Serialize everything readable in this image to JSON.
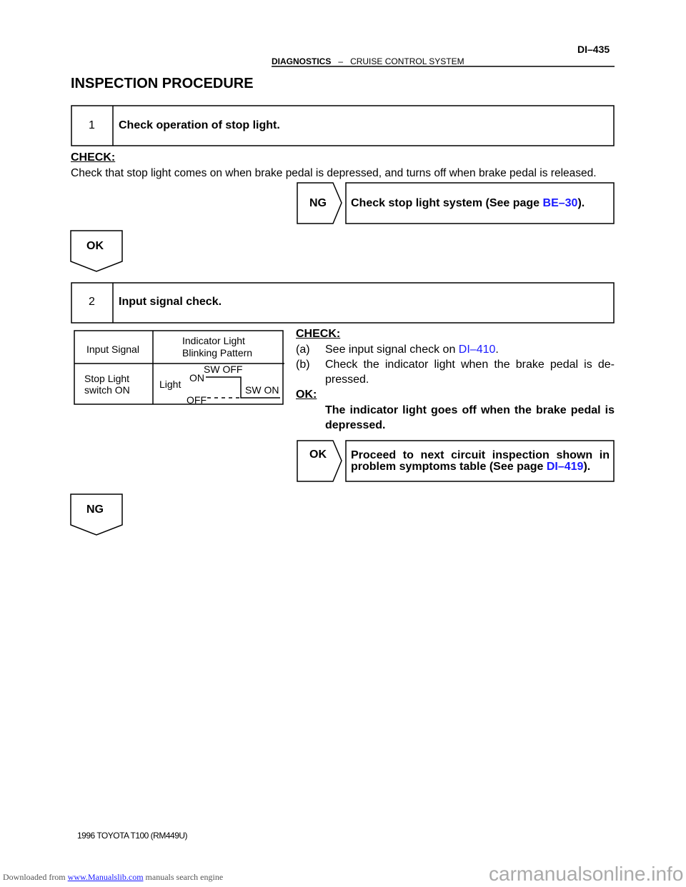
{
  "header": {
    "section": "DIAGNOSTICS",
    "separator": "–",
    "system": "CRUISE CONTROL SYSTEM",
    "page": "DI–435"
  },
  "title": "INSPECTION PROCEDURE",
  "step1": {
    "number": "1",
    "title": "Check operation of stop light.",
    "check_label": "CHECK:",
    "check_text": "Check that stop light comes on when brake pedal is depressed, and turns off when brake pedal is released.",
    "ng": {
      "label": "NG",
      "text": "Check stop light system (See page ",
      "link": "BE–30",
      "end": ")."
    },
    "ok_label": "OK"
  },
  "step2": {
    "number": "2",
    "title": "Input signal check.",
    "table": {
      "col1": "Input Signal",
      "col2_line1": "Indicator Light",
      "col2_line2": "Blinking Pattern",
      "row_line1": "Stop Light",
      "row_line2": "switch ON",
      "light": "Light",
      "on": "ON",
      "off": "OFF",
      "sw_off": "SW OFF",
      "sw_on": "SW ON"
    },
    "check_label": "CHECK:",
    "a_label": "(a)",
    "a_text": "See input signal check on ",
    "a_link": "DI–410",
    "a_end": ".",
    "b_label": "(b)",
    "b_text1": "Check the indicator light when the brake pedal is de-",
    "b_text2": "pressed.",
    "ok_label": "OK:",
    "ok_text1": "The indicator light goes off when the brake pedal is",
    "ok_text2": "depressed.",
    "ok": {
      "label": "OK",
      "text1": "Proceed to next circuit inspection shown in",
      "text2": "problem symptoms table (See page ",
      "link": "DI–419",
      "end": ")."
    },
    "ng_label": "NG"
  },
  "footer": {
    "model": "1996 TOYOTA T100   (RM449U)",
    "downloaded": "Downloaded from ",
    "site": "www.Manualslib.com",
    "engine": " manuals search engine",
    "watermark": "carmanualsonline.info"
  }
}
